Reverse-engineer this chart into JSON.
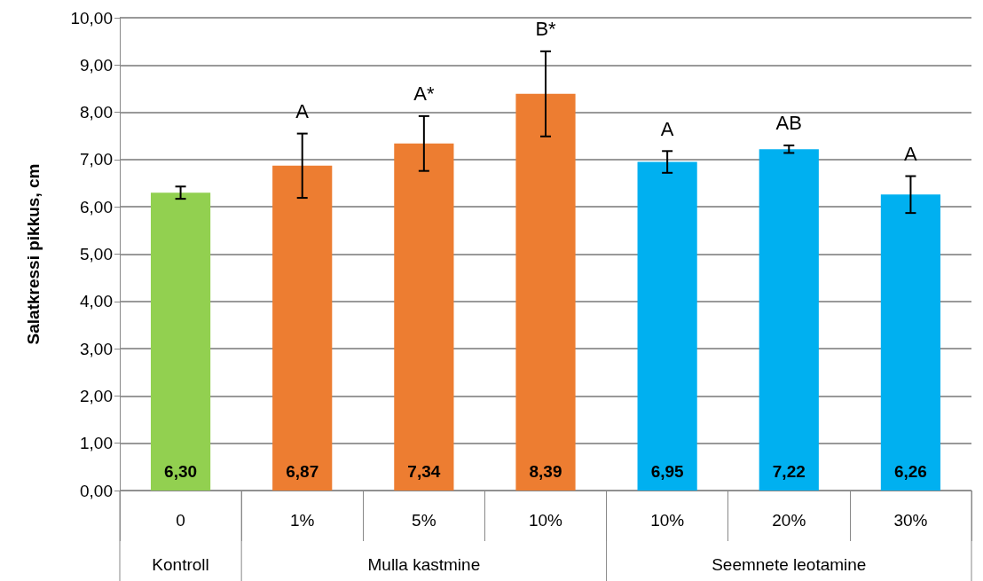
{
  "chart_data": {
    "type": "bar",
    "ylabel": "Salatkressi pikkus, cm",
    "categories": [
      "0",
      "1%",
      "5%",
      "10%",
      "10%",
      "20%",
      "30%"
    ],
    "values": [
      6.3,
      6.87,
      7.34,
      8.39,
      6.95,
      7.22,
      6.26
    ],
    "value_labels": [
      "6,30",
      "6,87",
      "7,34",
      "8,39",
      "6,95",
      "7,22",
      "6,26"
    ],
    "colors": [
      "#92d050",
      "#ed7d31",
      "#ed7d31",
      "#ed7d31",
      "#00b0f0",
      "#00b0f0",
      "#00b0f0"
    ],
    "errors": [
      0.13,
      0.68,
      0.58,
      0.9,
      0.23,
      0.08,
      0.39
    ],
    "ylim": [
      0,
      10
    ],
    "yticks": [
      {
        "value": 0,
        "label": "0,00"
      },
      {
        "value": 1,
        "label": "1,00"
      },
      {
        "value": 2,
        "label": "2,00"
      },
      {
        "value": 3,
        "label": "3,00"
      },
      {
        "value": 4,
        "label": "4,00"
      },
      {
        "value": 5,
        "label": "5,00"
      },
      {
        "value": 6,
        "label": "6,00"
      },
      {
        "value": 7,
        "label": "7,00"
      },
      {
        "value": 8,
        "label": "8,00"
      },
      {
        "value": 9,
        "label": "9,00"
      },
      {
        "value": 10,
        "label": "10,00"
      }
    ],
    "grid": "y",
    "annotations": [
      "A",
      "A*",
      "B*",
      "A",
      "AB",
      "A",
      "Kontroll",
      "Mulla kastmine",
      "Seemnete leotamine"
    ]
  }
}
